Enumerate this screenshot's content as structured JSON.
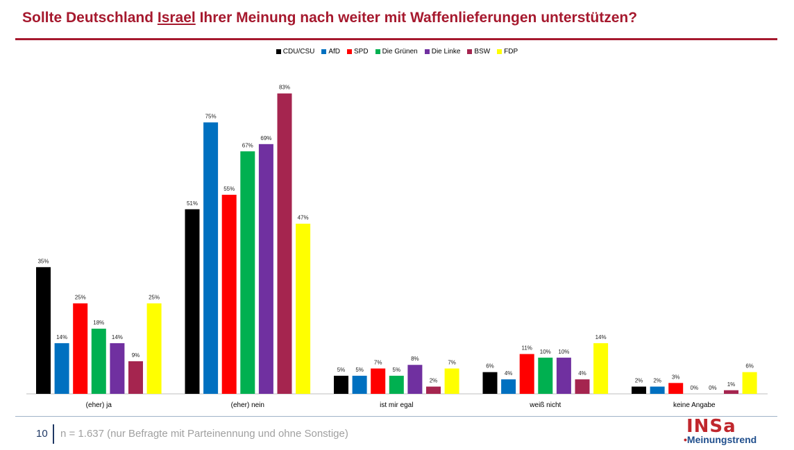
{
  "title": {
    "pre": "Sollte Deutschland ",
    "highlight": "Israel",
    "post": " Ihrer Meinung nach weiter mit Waffenlieferungen unterstützen?"
  },
  "footer": {
    "page": "10",
    "note": "n = 1.637 (nur Befragte mit Parteinennung und ohne Sonstige)"
  },
  "logo": {
    "top": "INSa",
    "dot": "•",
    "bottom": "Meinungstrend"
  },
  "chart_data": {
    "type": "bar",
    "categories": [
      "(eher) ja",
      "(eher) nein",
      "ist mir egal",
      "weiß nicht",
      "keine Angabe"
    ],
    "ylim": [
      0,
      100
    ],
    "value_suffix": "%",
    "grid": false,
    "legend_position": "top-center",
    "series": [
      {
        "name": "CDU/CSU",
        "color": "#000000",
        "values": [
          35,
          51,
          5,
          6,
          2
        ]
      },
      {
        "name": "AfD",
        "color": "#0070c0",
        "values": [
          14,
          75,
          5,
          4,
          2
        ]
      },
      {
        "name": "SPD",
        "color": "#ff0000",
        "values": [
          25,
          55,
          7,
          11,
          3
        ]
      },
      {
        "name": "Die Grünen",
        "color": "#00b050",
        "values": [
          18,
          67,
          5,
          10,
          0
        ]
      },
      {
        "name": "Die Linke",
        "color": "#7030a0",
        "values": [
          14,
          69,
          8,
          10,
          0
        ]
      },
      {
        "name": "BSW",
        "color": "#a5254f",
        "values": [
          9,
          83,
          2,
          4,
          1
        ]
      },
      {
        "name": "FDP",
        "color": "#ffff00",
        "values": [
          25,
          47,
          7,
          14,
          6
        ]
      }
    ]
  }
}
